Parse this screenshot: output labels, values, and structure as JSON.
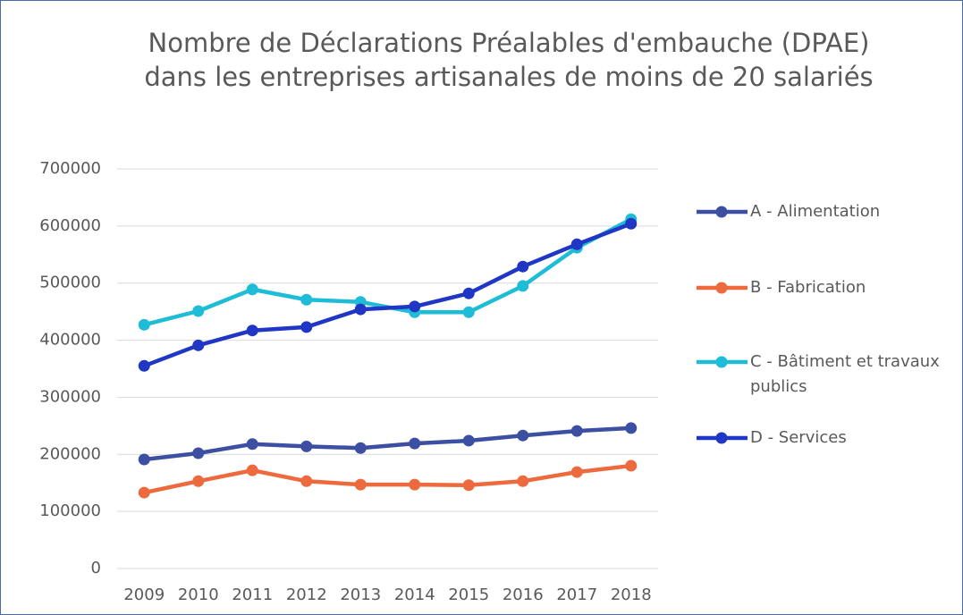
{
  "chart_data": {
    "type": "line",
    "title": "Nombre de Déclarations Préalables d'embauche (DPAE) dans les entreprises artisanales de moins de 20 salariés",
    "categories": [
      "2009",
      "2010",
      "2011",
      "2012",
      "2013",
      "2014",
      "2015",
      "2016",
      "2017",
      "2018"
    ],
    "series": [
      {
        "name": "A - Alimentation",
        "color": "#3c4fa3",
        "values": [
          191000,
          202000,
          218000,
          214000,
          211000,
          219000,
          224000,
          233000,
          241000,
          246000
        ]
      },
      {
        "name": "B - Fabrication",
        "color": "#ec6a3d",
        "values": [
          133000,
          153000,
          172000,
          153000,
          147000,
          147000,
          146000,
          153000,
          169000,
          180000
        ]
      },
      {
        "name": "C - Bâtiment et travaux publics",
        "color": "#1ebcd6",
        "values": [
          427000,
          451000,
          489000,
          471000,
          467000,
          449000,
          449000,
          495000,
          562000,
          612000
        ]
      },
      {
        "name": "D - Services",
        "color": "#1f37c4",
        "values": [
          355000,
          391000,
          417000,
          423000,
          454000,
          459000,
          482000,
          529000,
          568000,
          604000
        ]
      }
    ],
    "ylim": [
      0,
      700000
    ],
    "yticks": [
      0,
      100000,
      200000,
      300000,
      400000,
      500000,
      600000,
      700000
    ],
    "grid": true,
    "legend": "right"
  }
}
